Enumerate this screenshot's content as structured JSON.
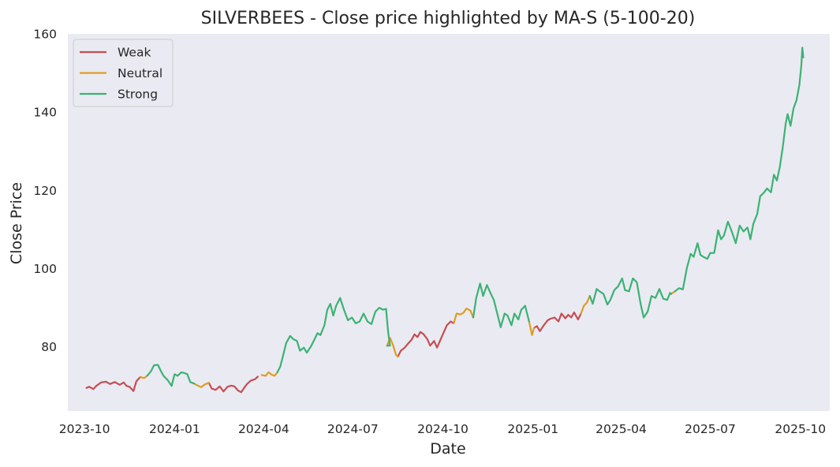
{
  "chart_data": {
    "type": "line",
    "title": "SILVERBEES - Close price highlighted by MA-S (5-100-20)",
    "xlabel": "Date",
    "ylabel": "Close Price",
    "xlim": [
      "2023-09-14",
      "2025-10-31"
    ],
    "ylim": [
      63.6,
      160
    ],
    "x_ticks": [
      "2023-10",
      "2024-01",
      "2024-04",
      "2024-07",
      "2024-10",
      "2025-01",
      "2025-04",
      "2025-07",
      "2025-10"
    ],
    "y_ticks": [
      80,
      100,
      120,
      140,
      160
    ],
    "grid": false,
    "legend_position": "top-left",
    "colors": {
      "background": "#eaeaf2",
      "Weak": "#c44e52",
      "Neutral": "#dd9d24",
      "Strong": "#3bb273"
    },
    "series": [
      {
        "name": "Weak",
        "segments": [
          [
            [
              "2023-10-03",
              69.5
            ],
            [
              "2023-10-06",
              69.8
            ],
            [
              "2023-10-10",
              69.2
            ],
            [
              "2023-10-13",
              70.0
            ],
            [
              "2023-10-18",
              70.9
            ],
            [
              "2023-10-23",
              71.1
            ],
            [
              "2023-10-27",
              70.5
            ],
            [
              "2023-11-01",
              71.0
            ],
            [
              "2023-11-06",
              70.3
            ],
            [
              "2023-11-10",
              70.9
            ],
            [
              "2023-11-13",
              70.0
            ],
            [
              "2023-11-16",
              69.8
            ],
            [
              "2023-11-20",
              68.7
            ],
            [
              "2023-11-23",
              71.2
            ],
            [
              "2023-11-27",
              72.3
            ]
          ],
          [
            [
              "2024-02-05",
              70.8
            ],
            [
              "2024-02-08",
              69.3
            ],
            [
              "2024-02-12",
              69.0
            ],
            [
              "2024-02-16",
              69.9
            ],
            [
              "2024-02-20",
              68.6
            ],
            [
              "2024-02-24",
              69.8
            ],
            [
              "2024-02-28",
              70.1
            ],
            [
              "2024-03-02",
              69.9
            ],
            [
              "2024-03-06",
              68.8
            ],
            [
              "2024-03-09",
              68.4
            ],
            [
              "2024-03-12",
              69.5
            ],
            [
              "2024-03-15",
              70.5
            ],
            [
              "2024-03-19",
              71.4
            ],
            [
              "2024-03-23",
              71.7
            ],
            [
              "2024-03-26",
              72.4
            ]
          ],
          [
            [
              "2024-08-16",
              77.5
            ],
            [
              "2024-08-19",
              79.0
            ],
            [
              "2024-08-23",
              79.8
            ],
            [
              "2024-08-27",
              81.0
            ],
            [
              "2024-08-30",
              81.8
            ],
            [
              "2024-09-02",
              83.2
            ],
            [
              "2024-09-05",
              82.5
            ],
            [
              "2024-09-08",
              83.8
            ],
            [
              "2024-09-11",
              83.3
            ],
            [
              "2024-09-15",
              82.0
            ],
            [
              "2024-09-18",
              80.3
            ],
            [
              "2024-09-22",
              81.5
            ],
            [
              "2024-09-25",
              79.8
            ],
            [
              "2024-09-28",
              81.5
            ],
            [
              "2024-10-02",
              83.8
            ],
            [
              "2024-10-05",
              85.5
            ],
            [
              "2024-10-09",
              86.5
            ],
            [
              "2024-10-12",
              86.0
            ]
          ],
          [
            [
              "2025-01-02",
              84.8
            ],
            [
              "2025-01-05",
              85.3
            ],
            [
              "2025-01-08",
              84.0
            ],
            [
              "2025-01-12",
              85.5
            ],
            [
              "2025-01-16",
              86.8
            ],
            [
              "2025-01-19",
              87.2
            ],
            [
              "2025-01-23",
              87.5
            ],
            [
              "2025-01-27",
              86.5
            ],
            [
              "2025-01-30",
              88.5
            ],
            [
              "2025-02-03",
              87.3
            ],
            [
              "2025-02-06",
              88.2
            ],
            [
              "2025-02-09",
              87.5
            ],
            [
              "2025-02-12",
              88.8
            ],
            [
              "2025-02-16",
              87.0
            ],
            [
              "2025-02-19",
              88.5
            ]
          ]
        ]
      },
      {
        "name": "Neutral",
        "segments": [
          [
            [
              "2023-11-27",
              72.3
            ],
            [
              "2023-12-01",
              72.0
            ],
            [
              "2023-12-04",
              72.6
            ]
          ],
          [
            [
              "2024-01-21",
              70.6
            ],
            [
              "2024-01-24",
              70.2
            ],
            [
              "2024-01-28",
              69.7
            ],
            [
              "2024-02-01",
              70.4
            ],
            [
              "2024-02-05",
              70.8
            ]
          ],
          [
            [
              "2024-03-30",
              72.8
            ],
            [
              "2024-04-03",
              72.6
            ],
            [
              "2024-04-06",
              73.5
            ],
            [
              "2024-04-09",
              72.9
            ],
            [
              "2024-04-12",
              72.6
            ],
            [
              "2024-04-15",
              73.5
            ]
          ],
          [
            [
              "2024-08-05",
              80.3
            ],
            [
              "2024-08-08",
              82.3
            ],
            [
              "2024-08-11",
              80.5
            ],
            [
              "2024-08-14",
              78.0
            ],
            [
              "2024-08-16",
              77.5
            ]
          ],
          [
            [
              "2024-10-12",
              86.0
            ],
            [
              "2024-10-15",
              88.5
            ],
            [
              "2024-10-19",
              88.3
            ],
            [
              "2024-10-22",
              88.7
            ],
            [
              "2024-10-25",
              89.8
            ],
            [
              "2024-10-29",
              89.3
            ],
            [
              "2024-11-01",
              87.5
            ]
          ],
          [
            [
              "2024-12-28",
              86.5
            ],
            [
              "2024-12-31",
              83.0
            ],
            [
              "2025-01-02",
              84.8
            ]
          ],
          [
            [
              "2025-02-19",
              88.5
            ],
            [
              "2025-02-22",
              90.5
            ],
            [
              "2025-02-25",
              91.3
            ],
            [
              "2025-02-28",
              93.0
            ]
          ],
          [
            [
              "2025-05-22",
              93.5
            ],
            [
              "2025-05-26",
              94.2
            ]
          ]
        ]
      },
      {
        "name": "Strong",
        "segments": [
          [
            [
              "2023-12-04",
              72.6
            ],
            [
              "2023-12-08",
              73.8
            ],
            [
              "2023-12-11",
              75.3
            ],
            [
              "2023-12-15",
              75.4
            ],
            [
              "2023-12-18",
              73.8
            ],
            [
              "2023-12-21",
              72.5
            ],
            [
              "2023-12-25",
              71.5
            ],
            [
              "2023-12-29",
              70.0
            ],
            [
              "2024-01-01",
              73.0
            ],
            [
              "2024-01-04",
              72.6
            ],
            [
              "2024-01-08",
              73.5
            ],
            [
              "2024-01-11",
              73.3
            ],
            [
              "2024-01-14",
              73.0
            ],
            [
              "2024-01-17",
              71.0
            ],
            [
              "2024-01-21",
              70.6
            ]
          ],
          [
            [
              "2024-04-15",
              73.5
            ],
            [
              "2024-04-18",
              75.0
            ],
            [
              "2024-04-21",
              78.0
            ],
            [
              "2024-04-24",
              81.0
            ],
            [
              "2024-04-28",
              82.8
            ],
            [
              "2024-05-01",
              82.0
            ],
            [
              "2024-05-05",
              81.5
            ],
            [
              "2024-05-08",
              79.0
            ],
            [
              "2024-05-12",
              79.8
            ],
            [
              "2024-05-15",
              78.5
            ],
            [
              "2024-05-19",
              80.0
            ],
            [
              "2024-05-22",
              81.5
            ],
            [
              "2024-05-26",
              83.5
            ],
            [
              "2024-05-29",
              83.0
            ],
            [
              "2024-06-02",
              85.5
            ],
            [
              "2024-06-05",
              89.5
            ],
            [
              "2024-06-08",
              91.0
            ],
            [
              "2024-06-11",
              88.0
            ],
            [
              "2024-06-14",
              90.5
            ],
            [
              "2024-06-18",
              92.5
            ],
            [
              "2024-06-22",
              89.5
            ],
            [
              "2024-06-26",
              86.8
            ],
            [
              "2024-06-30",
              87.5
            ],
            [
              "2024-07-04",
              86.0
            ],
            [
              "2024-07-08",
              86.5
            ],
            [
              "2024-07-12",
              88.5
            ],
            [
              "2024-07-16",
              86.5
            ],
            [
              "2024-07-20",
              85.8
            ],
            [
              "2024-07-24",
              89.0
            ],
            [
              "2024-07-28",
              90.0
            ],
            [
              "2024-08-01",
              89.5
            ],
            [
              "2024-08-04",
              89.7
            ],
            [
              "2024-08-06",
              84.0
            ],
            [
              "2024-08-08",
              80.3
            ],
            [
              "2024-08-05",
              80.3
            ]
          ],
          [
            [
              "2024-11-01",
              87.5
            ],
            [
              "2024-11-04",
              92.5
            ],
            [
              "2024-11-08",
              96.2
            ],
            [
              "2024-11-11",
              93.0
            ],
            [
              "2024-11-15",
              95.8
            ],
            [
              "2024-11-19",
              93.5
            ],
            [
              "2024-11-22",
              92.0
            ],
            [
              "2024-11-26",
              88.0
            ],
            [
              "2024-11-29",
              85.0
            ],
            [
              "2024-12-03",
              88.5
            ],
            [
              "2024-12-06",
              88.0
            ],
            [
              "2024-12-10",
              85.5
            ],
            [
              "2024-12-13",
              88.5
            ],
            [
              "2024-12-17",
              87.0
            ],
            [
              "2024-12-20",
              89.5
            ],
            [
              "2024-12-24",
              90.5
            ],
            [
              "2024-12-28",
              86.5
            ]
          ],
          [
            [
              "2025-02-28",
              93.0
            ],
            [
              "2025-03-03",
              91.0
            ],
            [
              "2025-03-07",
              94.8
            ],
            [
              "2025-03-10",
              94.2
            ],
            [
              "2025-03-14",
              93.5
            ],
            [
              "2025-03-18",
              90.8
            ],
            [
              "2025-03-21",
              92.0
            ],
            [
              "2025-03-25",
              94.5
            ],
            [
              "2025-03-29",
              95.5
            ],
            [
              "2025-04-02",
              97.5
            ],
            [
              "2025-04-05",
              94.5
            ],
            [
              "2025-04-09",
              94.2
            ],
            [
              "2025-04-13",
              97.5
            ],
            [
              "2025-04-17",
              96.5
            ],
            [
              "2025-04-21",
              90.8
            ],
            [
              "2025-04-24",
              87.5
            ],
            [
              "2025-04-28",
              89.0
            ],
            [
              "2025-05-02",
              93.0
            ],
            [
              "2025-05-06",
              92.5
            ],
            [
              "2025-05-10",
              94.8
            ],
            [
              "2025-05-14",
              92.3
            ],
            [
              "2025-05-18",
              92.0
            ],
            [
              "2025-05-21",
              93.8
            ],
            [
              "2025-05-22",
              93.5
            ]
          ],
          [
            [
              "2025-05-26",
              94.2
            ],
            [
              "2025-05-30",
              95.0
            ],
            [
              "2025-06-03",
              94.7
            ],
            [
              "2025-06-07",
              100.0
            ],
            [
              "2025-06-11",
              103.8
            ],
            [
              "2025-06-14",
              103.0
            ],
            [
              "2025-06-18",
              106.5
            ],
            [
              "2025-06-21",
              103.5
            ],
            [
              "2025-06-24",
              103.0
            ],
            [
              "2025-06-28",
              102.5
            ],
            [
              "2025-07-01",
              104.0
            ],
            [
              "2025-07-05",
              104.0
            ],
            [
              "2025-07-09",
              109.8
            ],
            [
              "2025-07-12",
              107.5
            ],
            [
              "2025-07-15",
              108.5
            ],
            [
              "2025-07-19",
              112.0
            ],
            [
              "2025-07-23",
              109.5
            ],
            [
              "2025-07-27",
              106.5
            ],
            [
              "2025-07-31",
              111.0
            ],
            [
              "2025-08-04",
              109.5
            ],
            [
              "2025-08-08",
              110.5
            ],
            [
              "2025-08-11",
              107.5
            ],
            [
              "2025-08-14",
              111.5
            ],
            [
              "2025-08-18",
              114.0
            ],
            [
              "2025-08-21",
              118.5
            ],
            [
              "2025-08-25",
              119.5
            ],
            [
              "2025-08-28",
              120.5
            ],
            [
              "2025-09-01",
              119.5
            ],
            [
              "2025-09-04",
              124.0
            ],
            [
              "2025-09-07",
              122.5
            ],
            [
              "2025-09-10",
              126.0
            ],
            [
              "2025-09-13",
              131.0
            ],
            [
              "2025-09-16",
              137.0
            ],
            [
              "2025-09-18",
              139.5
            ],
            [
              "2025-09-21",
              136.5
            ],
            [
              "2025-09-24",
              141.0
            ],
            [
              "2025-09-27",
              143.0
            ],
            [
              "2025-09-30",
              147.0
            ],
            [
              "2025-10-02",
              152.0
            ],
            [
              "2025-10-03",
              156.5
            ],
            [
              "2025-10-04",
              154.0
            ]
          ]
        ]
      }
    ]
  }
}
